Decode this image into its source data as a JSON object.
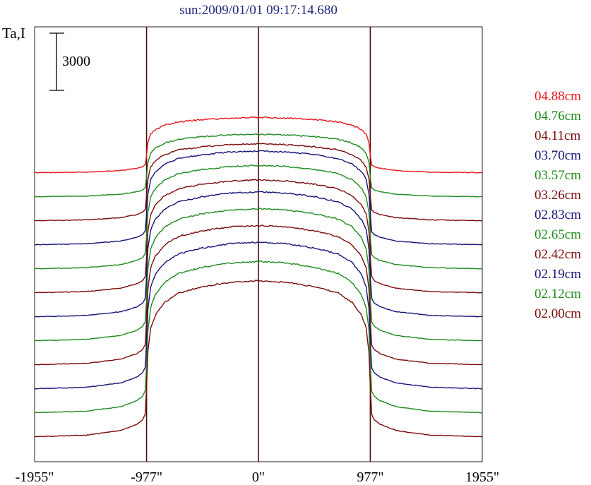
{
  "chart_data": {
    "type": "line",
    "title": "sun:2009/01/01 09:17:14.680",
    "ylabel": "Ta,I",
    "scale_bar_label": "3000",
    "scale_bar_value": 3000,
    "x_tick_labels": [
      "-1955\"",
      "-977\"",
      "0\"",
      "977\"",
      "1955\""
    ],
    "x_ticks": [
      -1955,
      -977,
      0,
      977,
      1955
    ],
    "xlim": [
      -1955,
      1955
    ],
    "vertical_markers": [
      -977,
      0,
      977
    ],
    "x_units": "arcsec",
    "colors": {
      "red": "#e8141c",
      "green": "#1d8a1d",
      "maroon": "#7a0a0a",
      "navy": "#141478",
      "frame": "#222222",
      "marker": "#4a0f0f",
      "title": "#1f2a7a"
    },
    "profile_shape": {
      "x": [
        -1955,
        -1500,
        -1200,
        -1060,
        -1010,
        -985,
        -977,
        -965,
        -940,
        -900,
        -820,
        -700,
        -500,
        -250,
        0,
        250,
        500,
        700,
        820,
        900,
        940,
        965,
        977,
        985,
        1010,
        1060,
        1200,
        1500,
        1955
      ],
      "y": [
        0,
        0.01,
        0.04,
        0.08,
        0.11,
        0.15,
        0.32,
        0.55,
        0.7,
        0.78,
        0.86,
        0.92,
        0.96,
        0.99,
        1.0,
        0.99,
        0.96,
        0.92,
        0.86,
        0.78,
        0.7,
        0.55,
        0.32,
        0.15,
        0.11,
        0.08,
        0.04,
        0.01,
        0
      ]
    },
    "series": [
      {
        "name": "04.88cm",
        "color": "red",
        "baseline": 8100,
        "disk_center": 10400
      },
      {
        "name": "04.76cm",
        "color": "green",
        "baseline": 7100,
        "disk_center": 9700
      },
      {
        "name": "04.11cm",
        "color": "maroon",
        "baseline": 6100,
        "disk_center": 9300
      },
      {
        "name": "03.70cm",
        "color": "navy",
        "baseline": 5100,
        "disk_center": 9000
      },
      {
        "name": "03.57cm",
        "color": "green",
        "baseline": 4100,
        "disk_center": 8400
      },
      {
        "name": "03.26cm",
        "color": "maroon",
        "baseline": 3100,
        "disk_center": 7800
      },
      {
        "name": "02.83cm",
        "color": "navy",
        "baseline": 2100,
        "disk_center": 7300
      },
      {
        "name": "02.65cm",
        "color": "green",
        "baseline": 1100,
        "disk_center": 6600
      },
      {
        "name": "02.42cm",
        "color": "maroon",
        "baseline": 100,
        "disk_center": 5900
      },
      {
        "name": "02.19cm",
        "color": "navy",
        "baseline": -900,
        "disk_center": 5200
      },
      {
        "name": "02.12cm",
        "color": "green",
        "baseline": -1900,
        "disk_center": 4400
      },
      {
        "name": "02.00cm",
        "color": "maroon",
        "baseline": -2900,
        "disk_center": 3600
      }
    ]
  }
}
